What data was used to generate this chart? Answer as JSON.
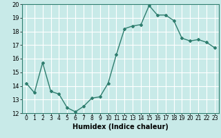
{
  "x": [
    0,
    1,
    2,
    3,
    4,
    5,
    6,
    7,
    8,
    9,
    10,
    11,
    12,
    13,
    14,
    15,
    16,
    17,
    18,
    19,
    20,
    21,
    22,
    23
  ],
  "y": [
    14.2,
    13.5,
    15.7,
    13.6,
    13.4,
    12.4,
    12.1,
    12.5,
    13.1,
    13.2,
    14.2,
    16.3,
    18.2,
    18.4,
    18.5,
    19.9,
    19.2,
    19.2,
    18.8,
    17.5,
    17.3,
    17.4,
    17.2,
    16.8
  ],
  "line_color": "#2e7d6e",
  "marker": "D",
  "marker_size": 2,
  "bg_color": "#c8eae8",
  "grid_color": "#ffffff",
  "xlabel": "Humidex (Indice chaleur)",
  "xlim": [
    -0.5,
    23.5
  ],
  "ylim": [
    12,
    20
  ],
  "yticks": [
    12,
    13,
    14,
    15,
    16,
    17,
    18,
    19,
    20
  ],
  "xticks": [
    0,
    1,
    2,
    3,
    4,
    5,
    6,
    7,
    8,
    9,
    10,
    11,
    12,
    13,
    14,
    15,
    16,
    17,
    18,
    19,
    20,
    21,
    22,
    23
  ],
  "xlabel_fontsize": 7,
  "tick_fontsize": 5.5,
  "ytick_fontsize": 6,
  "linewidth": 1.0
}
